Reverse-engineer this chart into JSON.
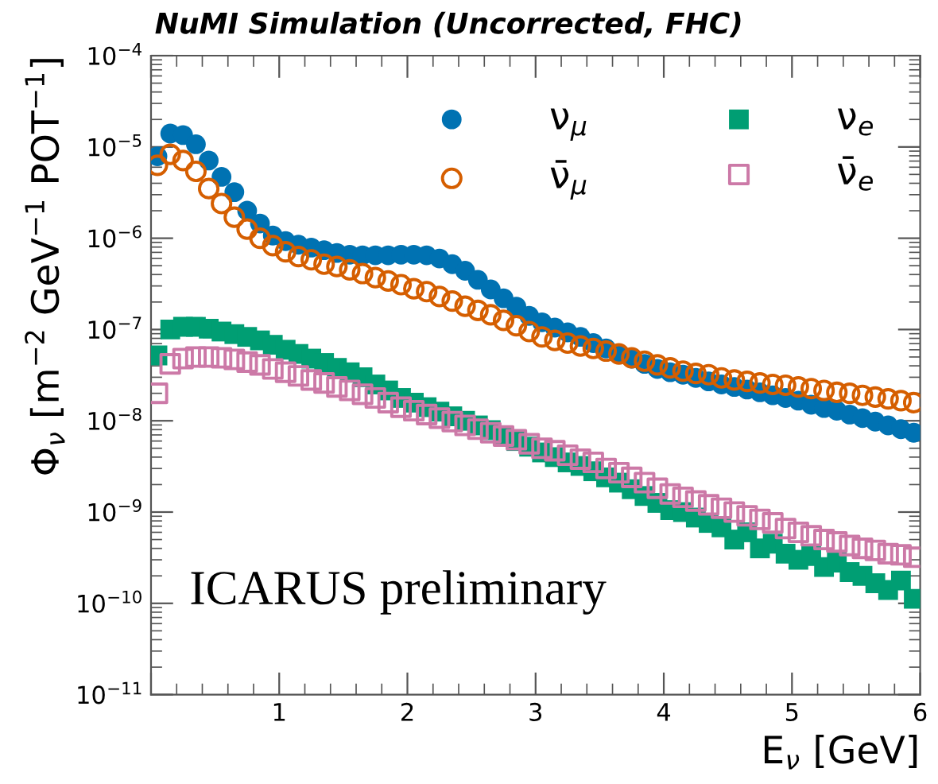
{
  "chart_data": {
    "type": "scatter",
    "title": "NuMI Simulation (Uncorrected, FHC)",
    "xlabel": "E$_{ν}$ [GeV]",
    "ylabel": "Φ$_{ν}$ [m$^{−2}$ GeV$^{−1}$ POT$^{−1}$]",
    "annotations": [
      "ICARUS preliminary"
    ],
    "x": [
      0.05,
      0.15,
      0.25,
      0.35,
      0.45,
      0.55,
      0.65,
      0.75,
      0.85,
      0.95,
      1.05,
      1.15,
      1.25,
      1.35,
      1.45,
      1.55,
      1.65,
      1.75,
      1.85,
      1.95,
      2.05,
      2.15,
      2.25,
      2.35,
      2.45,
      2.55,
      2.65,
      2.75,
      2.85,
      2.95,
      3.05,
      3.15,
      3.25,
      3.35,
      3.45,
      3.55,
      3.65,
      3.75,
      3.85,
      3.95,
      4.05,
      4.15,
      4.25,
      4.35,
      4.45,
      4.55,
      4.65,
      4.75,
      4.85,
      4.95,
      5.05,
      5.15,
      5.25,
      5.35,
      5.45,
      5.55,
      5.65,
      5.75,
      5.85,
      5.95
    ],
    "series": [
      {
        "name": "ν$_{μ}$",
        "color": "#0072b2",
        "marker": "circle",
        "values": [
          7.9e-06,
          1.4e-05,
          1.35e-05,
          1.07e-05,
          7.1e-06,
          4.7e-06,
          3.2e-06,
          2e-06,
          1.45e-06,
          1.07e-06,
          9.3e-07,
          8.5e-07,
          7.9e-07,
          7.4e-07,
          6.9e-07,
          6.6e-07,
          6.5e-07,
          6.5e-07,
          6.5e-07,
          6.6e-07,
          6.6e-07,
          6.5e-07,
          6e-07,
          5.2e-07,
          4.4e-07,
          3.5e-07,
          2.75e-07,
          2.2e-07,
          1.78e-07,
          1.41e-07,
          1.2e-07,
          1.05e-07,
          9.3e-08,
          8.3e-08,
          7.1e-08,
          6.2e-08,
          5.4e-08,
          4.8e-08,
          4.2e-08,
          3.7e-08,
          3.4e-08,
          3.2e-08,
          2.95e-08,
          2.7e-08,
          2.5e-08,
          2.35e-08,
          2.2e-08,
          2.05e-08,
          1.9e-08,
          1.78e-08,
          1.66e-08,
          1.5e-08,
          1.38e-08,
          1.29e-08,
          1.17e-08,
          1.07e-08,
          9.8e-09,
          8.9e-09,
          8.1e-09,
          7.4e-09
        ]
      },
      {
        "name": "ν̄$_{μ}$",
        "color": "#d55e00",
        "marker": "circle",
        "values": [
          6.3e-06,
          8.3e-06,
          7.1e-06,
          5.4e-06,
          3.5e-06,
          2.4e-06,
          1.7e-06,
          1.26e-06,
          1e-06,
          8.3e-07,
          7.1e-07,
          6.3e-07,
          5.8e-07,
          5.2e-07,
          4.9e-07,
          4.5e-07,
          4.1e-07,
          3.7e-07,
          3.4e-07,
          3.1e-07,
          2.8e-07,
          2.6e-07,
          2.3e-07,
          2.05e-07,
          1.8e-07,
          1.62e-07,
          1.45e-07,
          1.26e-07,
          1.1e-07,
          9.5e-08,
          8.3e-08,
          7.6e-08,
          7.1e-08,
          6.6e-08,
          6.2e-08,
          5.8e-08,
          5.4e-08,
          4.9e-08,
          4.5e-08,
          4.1e-08,
          3.8e-08,
          3.5e-08,
          3.3e-08,
          3.2e-08,
          2.95e-08,
          2.8e-08,
          2.7e-08,
          2.6e-08,
          2.5e-08,
          2.45e-08,
          2.35e-08,
          2.25e-08,
          2.15e-08,
          2.05e-08,
          2e-08,
          1.9e-08,
          1.82e-08,
          1.74e-08,
          1.66e-08,
          1.58e-08
        ]
      },
      {
        "name": "ν$_{e}$",
        "color": "#009e73",
        "marker": "square",
        "values": [
          5.2e-08,
          1e-07,
          1.07e-07,
          1.07e-07,
          1.02e-07,
          9.5e-08,
          8.9e-08,
          8.3e-08,
          7.6e-08,
          6.8e-08,
          6e-08,
          5.4e-08,
          4.8e-08,
          4.3e-08,
          3.8e-08,
          3.4e-08,
          3e-08,
          2.5e-08,
          2.15e-08,
          1.78e-08,
          1.58e-08,
          1.41e-08,
          1.26e-08,
          1.12e-08,
          1e-08,
          8.9e-09,
          7.9e-09,
          6.9e-09,
          6e-09,
          5.2e-09,
          4.5e-09,
          4e-09,
          3.5e-09,
          3.2e-09,
          2.8e-09,
          2.4e-09,
          2.1e-09,
          1.78e-09,
          1.5e-09,
          1.26e-09,
          1.05e-09,
          1e-09,
          8.7e-10,
          7.6e-10,
          6.8e-10,
          5e-10,
          6e-10,
          4e-10,
          4.5e-10,
          3.5e-10,
          3e-10,
          3.3e-10,
          2.5e-10,
          2.8e-10,
          2.2e-10,
          2e-10,
          1.66e-10,
          1.4e-10,
          1.78e-10,
          1.12e-10
        ]
      },
      {
        "name": "ν̄$_{e}$",
        "color": "#cc79a7",
        "marker": "square",
        "values": [
          2e-08,
          4.2e-08,
          4.8e-08,
          5e-08,
          5e-08,
          4.9e-08,
          4.7e-08,
          4.4e-08,
          4.1e-08,
          3.7e-08,
          3.4e-08,
          3.1e-08,
          2.8e-08,
          2.6e-08,
          2.35e-08,
          2.15e-08,
          1.95e-08,
          1.78e-08,
          1.58e-08,
          1.41e-08,
          1.29e-08,
          1.17e-08,
          1.07e-08,
          9.8e-09,
          8.9e-09,
          8.1e-09,
          7.4e-09,
          6.8e-09,
          6.2e-09,
          5.6e-09,
          5e-09,
          4.7e-09,
          4.2e-09,
          3.8e-09,
          3.5e-09,
          3e-09,
          2.7e-09,
          2.4e-09,
          2.1e-09,
          1.82e-09,
          1.58e-09,
          1.45e-09,
          1.32e-09,
          1.2e-09,
          1.1e-09,
          1e-09,
          9.1e-10,
          8.3e-10,
          7.6e-10,
          6.6e-10,
          6e-10,
          5.5e-10,
          5e-10,
          4.7e-10,
          4.3e-10,
          4e-10,
          3.8e-10,
          3.5e-10,
          3.4e-10,
          3.2e-10
        ]
      }
    ],
    "log": "y",
    "xlim": [
      0,
      6
    ],
    "xticks": [
      {
        "value": 0,
        "label": null
      },
      1,
      2,
      3,
      4,
      5,
      6
    ],
    "ylim": [
      1e-11,
      0.0001
    ],
    "yticks": [
      {
        "value": 1e-11,
        "label": "10$^{−11}$"
      },
      {
        "value": 1e-10,
        "label": "10$^{−10}$"
      },
      {
        "value": 1e-09,
        "label": "10$^{−9}$"
      },
      {
        "value": 1e-08,
        "label": "10$^{−8}$"
      },
      {
        "value": 1e-07,
        "label": "10$^{−7}$"
      },
      {
        "value": 1e-06,
        "label": "10$^{−6}$"
      },
      {
        "value": 1e-05,
        "label": "10$^{−5}$"
      },
      {
        "value": 0.0001,
        "label": "10$^{−4}$"
      }
    ],
    "grid": false,
    "legend": "top right"
  }
}
